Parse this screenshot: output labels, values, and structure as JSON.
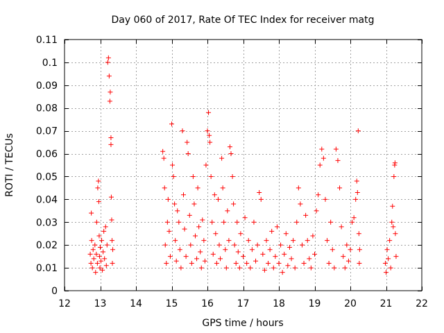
{
  "chart_data": {
    "type": "scatter",
    "title": "Day 060 of 2017, Rate Of TEC Index for receiver matg",
    "xlabel": "GPS time / hours",
    "ylabel": "ROTI / TECUs",
    "xlim": [
      12,
      22
    ],
    "ylim": [
      0,
      0.11
    ],
    "x_ticks": [
      12,
      13,
      14,
      15,
      16,
      17,
      18,
      19,
      20,
      21,
      22
    ],
    "y_ticks": [
      0,
      0.01,
      0.02,
      0.03,
      0.04,
      0.05,
      0.06,
      0.07,
      0.08,
      0.09,
      0.1,
      0.11
    ],
    "grid": true,
    "marker": "plus",
    "color": "#ff0000",
    "series": [
      {
        "points": [
          [
            12.72,
            0.016
          ],
          [
            12.74,
            0.012
          ],
          [
            12.75,
            0.034
          ],
          [
            12.76,
            0.022
          ],
          [
            12.78,
            0.01
          ],
          [
            12.8,
            0.018
          ],
          [
            12.82,
            0.014
          ],
          [
            12.85,
            0.02
          ],
          [
            12.87,
            0.008
          ],
          [
            12.89,
            0.016
          ],
          [
            12.9,
            0.03
          ],
          [
            12.92,
            0.012
          ],
          [
            12.93,
            0.045
          ],
          [
            12.95,
            0.048
          ],
          [
            12.96,
            0.039
          ],
          [
            12.97,
            0.024
          ],
          [
            12.98,
            0.015
          ],
          [
            12.99,
            0.01
          ],
          [
            13.0,
            0.019
          ],
          [
            13.02,
            0.013
          ],
          [
            13.04,
            0.022
          ],
          [
            13.06,
            0.009
          ],
          [
            13.08,
            0.017
          ],
          [
            13.1,
            0.026
          ],
          [
            13.12,
            0.014
          ],
          [
            13.15,
            0.028
          ],
          [
            13.17,
            0.011
          ],
          [
            13.19,
            0.02
          ],
          [
            13.21,
            0.1
          ],
          [
            13.23,
            0.102
          ],
          [
            13.25,
            0.094
          ],
          [
            13.27,
            0.083
          ],
          [
            13.28,
            0.087
          ],
          [
            13.3,
            0.067
          ],
          [
            13.3,
            0.064
          ],
          [
            13.31,
            0.041
          ],
          [
            13.32,
            0.031
          ],
          [
            13.33,
            0.022
          ],
          [
            13.34,
            0.012
          ],
          [
            13.35,
            0.018
          ],
          [
            14.75,
            0.061
          ],
          [
            14.78,
            0.058
          ],
          [
            14.8,
            0.045
          ],
          [
            14.82,
            0.02
          ],
          [
            14.85,
            0.012
          ],
          [
            14.88,
            0.03
          ],
          [
            14.9,
            0.04
          ],
          [
            14.93,
            0.026
          ],
          [
            14.96,
            0.015
          ],
          [
            15.0,
            0.073
          ],
          [
            15.02,
            0.055
          ],
          [
            15.05,
            0.05
          ],
          [
            15.08,
            0.038
          ],
          [
            15.1,
            0.022
          ],
          [
            15.13,
            0.013
          ],
          [
            15.16,
            0.035
          ],
          [
            15.2,
            0.03
          ],
          [
            15.23,
            0.018
          ],
          [
            15.26,
            0.01
          ],
          [
            15.3,
            0.07
          ],
          [
            15.33,
            0.042
          ],
          [
            15.36,
            0.027
          ],
          [
            15.4,
            0.015
          ],
          [
            15.43,
            0.065
          ],
          [
            15.46,
            0.06
          ],
          [
            15.5,
            0.033
          ],
          [
            15.53,
            0.02
          ],
          [
            15.56,
            0.012
          ],
          [
            15.6,
            0.05
          ],
          [
            15.63,
            0.038
          ],
          [
            15.66,
            0.024
          ],
          [
            15.7,
            0.014
          ],
          [
            15.73,
            0.045
          ],
          [
            15.76,
            0.028
          ],
          [
            15.8,
            0.017
          ],
          [
            15.83,
            0.01
          ],
          [
            15.86,
            0.031
          ],
          [
            15.9,
            0.022
          ],
          [
            15.93,
            0.013
          ],
          [
            15.96,
            0.055
          ],
          [
            16.0,
            0.07
          ],
          [
            16.03,
            0.078
          ],
          [
            16.05,
            0.068
          ],
          [
            16.07,
            0.065
          ],
          [
            16.1,
            0.05
          ],
          [
            16.13,
            0.03
          ],
          [
            16.16,
            0.016
          ],
          [
            16.2,
            0.042
          ],
          [
            16.23,
            0.025
          ],
          [
            16.26,
            0.012
          ],
          [
            16.3,
            0.04
          ],
          [
            16.33,
            0.02
          ],
          [
            16.36,
            0.014
          ],
          [
            16.4,
            0.058
          ],
          [
            16.43,
            0.045
          ],
          [
            16.46,
            0.03
          ],
          [
            16.5,
            0.018
          ],
          [
            16.53,
            0.01
          ],
          [
            16.56,
            0.035
          ],
          [
            16.6,
            0.022
          ],
          [
            16.63,
            0.063
          ],
          [
            16.66,
            0.06
          ],
          [
            16.7,
            0.05
          ],
          [
            16.73,
            0.038
          ],
          [
            16.76,
            0.02
          ],
          [
            16.8,
            0.012
          ],
          [
            16.83,
            0.03
          ],
          [
            16.86,
            0.017
          ],
          [
            16.9,
            0.01
          ],
          [
            16.93,
            0.025
          ],
          [
            17.0,
            0.015
          ],
          [
            17.05,
            0.032
          ],
          [
            17.1,
            0.012
          ],
          [
            17.15,
            0.022
          ],
          [
            17.2,
            0.01
          ],
          [
            17.25,
            0.018
          ],
          [
            17.3,
            0.03
          ],
          [
            17.35,
            0.013
          ],
          [
            17.4,
            0.02
          ],
          [
            17.45,
            0.043
          ],
          [
            17.5,
            0.04
          ],
          [
            17.55,
            0.016
          ],
          [
            17.6,
            0.009
          ],
          [
            17.65,
            0.022
          ],
          [
            17.7,
            0.012
          ],
          [
            17.75,
            0.018
          ],
          [
            17.8,
            0.026
          ],
          [
            17.85,
            0.01
          ],
          [
            17.9,
            0.015
          ],
          [
            17.95,
            0.028
          ],
          [
            18.0,
            0.012
          ],
          [
            18.05,
            0.02
          ],
          [
            18.1,
            0.008
          ],
          [
            18.15,
            0.016
          ],
          [
            18.2,
            0.025
          ],
          [
            18.25,
            0.011
          ],
          [
            18.3,
            0.019
          ],
          [
            18.35,
            0.014
          ],
          [
            18.4,
            0.022
          ],
          [
            18.45,
            0.01
          ],
          [
            18.5,
            0.03
          ],
          [
            18.55,
            0.045
          ],
          [
            18.6,
            0.038
          ],
          [
            18.65,
            0.02
          ],
          [
            18.7,
            0.012
          ],
          [
            18.75,
            0.033
          ],
          [
            18.8,
            0.022
          ],
          [
            18.85,
            0.014
          ],
          [
            18.9,
            0.01
          ],
          [
            18.95,
            0.024
          ],
          [
            19.0,
            0.016
          ],
          [
            19.05,
            0.035
          ],
          [
            19.1,
            0.042
          ],
          [
            19.15,
            0.055
          ],
          [
            19.2,
            0.062
          ],
          [
            19.25,
            0.058
          ],
          [
            19.3,
            0.04
          ],
          [
            19.35,
            0.022
          ],
          [
            19.4,
            0.012
          ],
          [
            19.45,
            0.03
          ],
          [
            19.5,
            0.018
          ],
          [
            19.55,
            0.01
          ],
          [
            19.6,
            0.062
          ],
          [
            19.65,
            0.057
          ],
          [
            19.7,
            0.045
          ],
          [
            19.75,
            0.028
          ],
          [
            19.8,
            0.015
          ],
          [
            19.85,
            0.01
          ],
          [
            19.9,
            0.02
          ],
          [
            19.95,
            0.013
          ],
          [
            20.0,
            0.018
          ],
          [
            20.05,
            0.03
          ],
          [
            20.1,
            0.032
          ],
          [
            20.15,
            0.04
          ],
          [
            20.18,
            0.048
          ],
          [
            20.2,
            0.043
          ],
          [
            20.22,
            0.07
          ],
          [
            20.24,
            0.025
          ],
          [
            20.25,
            0.012
          ],
          [
            20.26,
            0.018
          ],
          [
            20.98,
            0.012
          ],
          [
            21.0,
            0.008
          ],
          [
            21.03,
            0.018
          ],
          [
            21.06,
            0.014
          ],
          [
            21.1,
            0.022
          ],
          [
            21.13,
            0.01
          ],
          [
            21.16,
            0.03
          ],
          [
            21.18,
            0.037
          ],
          [
            21.2,
            0.028
          ],
          [
            21.22,
            0.05
          ],
          [
            21.24,
            0.055
          ],
          [
            21.25,
            0.056
          ],
          [
            21.26,
            0.025
          ],
          [
            21.28,
            0.015
          ]
        ]
      }
    ]
  }
}
